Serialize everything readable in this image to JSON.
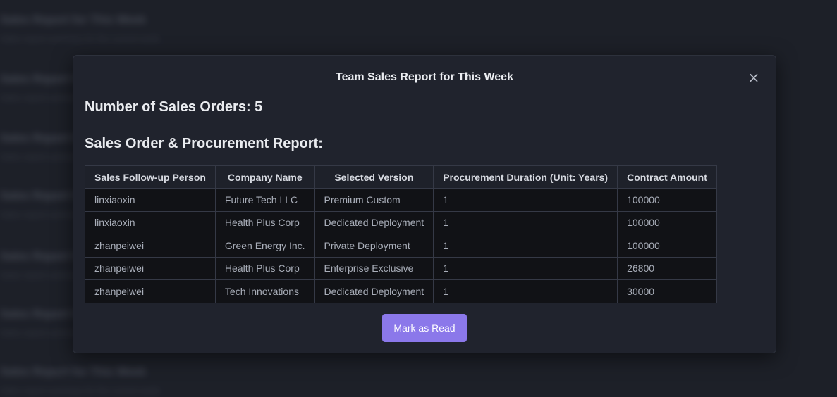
{
  "background_list": [
    {
      "title": "Sales Report for This Week",
      "sub": "Sales report summary for the current week"
    },
    {
      "title": "Sales Report for This Week",
      "sub": "Sales report summary"
    },
    {
      "title": "Sales Report for This Week",
      "sub": "Sales report summary for this week"
    },
    {
      "title": "Sales Report for This Week",
      "sub": "Sales report summary for this week details"
    },
    {
      "title": "Sales Report for This Week",
      "sub": "Sales report summary for this week details"
    },
    {
      "title": "Sales Report for This Week",
      "sub": "Sales report summary for this week"
    },
    {
      "title": "Sales Report for This Week",
      "sub": "Sales report summary for the current week"
    }
  ],
  "modal": {
    "title": "Team Sales Report for This Week",
    "close_icon": "×",
    "orders_count_label": "Number of Sales Orders: 5",
    "report_heading": "Sales Order & Procurement Report:",
    "table": {
      "headers": [
        "Sales Follow-up Person",
        "Company Name",
        "Selected Version",
        "Procurement Duration (Unit: Years)",
        "Contract Amount"
      ],
      "rows": [
        [
          "linxiaoxin",
          "Future Tech LLC",
          "Premium Custom",
          "1",
          "100000"
        ],
        [
          "linxiaoxin",
          "Health Plus Corp",
          "Dedicated Deployment",
          "1",
          "100000"
        ],
        [
          "zhanpeiwei",
          "Green Energy Inc.",
          "Private Deployment",
          "1",
          "100000"
        ],
        [
          "zhanpeiwei",
          "Health Plus Corp",
          "Enterprise Exclusive",
          "1",
          "26800"
        ],
        [
          "zhanpeiwei",
          "Tech Innovations",
          "Dedicated Deployment",
          "1",
          "30000"
        ]
      ]
    },
    "mark_read_label": "Mark as Read"
  },
  "colors": {
    "accent": "#8b78ea",
    "background": "#22252f",
    "modal": "#20232d"
  }
}
